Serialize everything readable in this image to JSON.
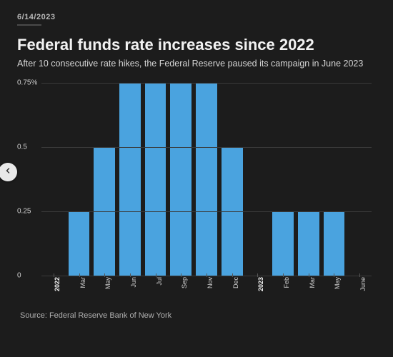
{
  "meta": {
    "date": "6/14/2023",
    "title": "Federal funds rate increases since 2022",
    "subtitle": "After 10 consecutive rate hikes, the Federal Reserve paused its campaign in June 2023",
    "source": "Source: Federal Reserve Bank of New York"
  },
  "chart": {
    "type": "bar",
    "background_color": "#1c1c1c",
    "bar_color": "#4aa3df",
    "grid_color": "#3a3a3a",
    "text_color": "#cfcfcf",
    "ylim": [
      0,
      0.75
    ],
    "yticks": [
      {
        "v": 0,
        "label": "0"
      },
      {
        "v": 0.25,
        "label": "0.25"
      },
      {
        "v": 0.5,
        "label": "0.5"
      },
      {
        "v": 0.75,
        "label": "0.75%"
      }
    ],
    "bars": [
      {
        "label": "2022",
        "year": true,
        "value": null
      },
      {
        "label": "Mar",
        "value": 0.25
      },
      {
        "label": "May",
        "value": 0.5
      },
      {
        "label": "Jun",
        "value": 0.75
      },
      {
        "label": "Jul",
        "value": 0.75
      },
      {
        "label": "Sep",
        "value": 0.75
      },
      {
        "label": "Nov",
        "value": 0.75
      },
      {
        "label": "Dec",
        "value": 0.5
      },
      {
        "label": "2023",
        "year": true,
        "value": null
      },
      {
        "label": "Feb",
        "value": 0.25
      },
      {
        "label": "Mar",
        "value": 0.25
      },
      {
        "label": "May",
        "value": 0.25
      },
      {
        "label": "June",
        "value": 0.0
      }
    ]
  }
}
